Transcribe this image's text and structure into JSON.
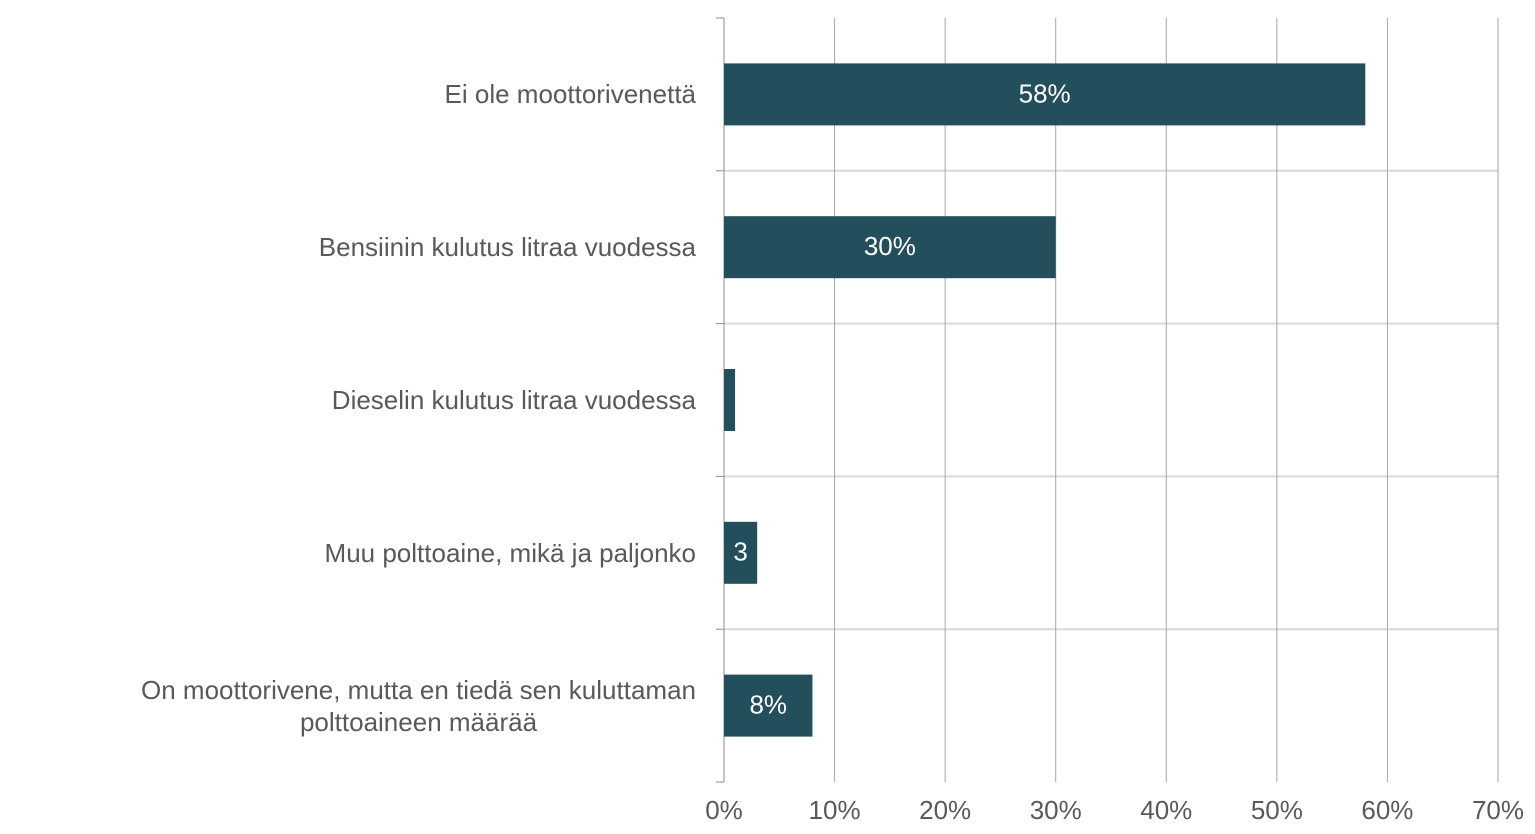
{
  "chart_data": {
    "type": "hbar",
    "categories": [
      "Ei ole moottorivenettä",
      "Bensiinin kulutus litraa vuodessa",
      "Dieselin kulutus litraa vuodessa",
      "Muu polttoaine, mikä ja paljonko",
      "On moottorivene, mutta en tiedä sen kuluttaman\npolttoaineen määrää"
    ],
    "values": [
      58,
      30,
      1,
      3,
      8
    ],
    "value_labels": [
      "58%",
      "30%",
      null,
      "3",
      "8%"
    ],
    "color": "#234e5b",
    "xlim": [
      0,
      70
    ],
    "xticks": [
      {
        "value": 0,
        "label": "0%"
      },
      {
        "value": 10,
        "label": "10%"
      },
      {
        "value": 20,
        "label": "20%"
      },
      {
        "value": 30,
        "label": "30%"
      },
      {
        "value": 40,
        "label": "40%"
      },
      {
        "value": 50,
        "label": "50%"
      },
      {
        "value": 60,
        "label": "60%"
      },
      {
        "value": 70,
        "label": "70%"
      }
    ],
    "grid": true
  }
}
